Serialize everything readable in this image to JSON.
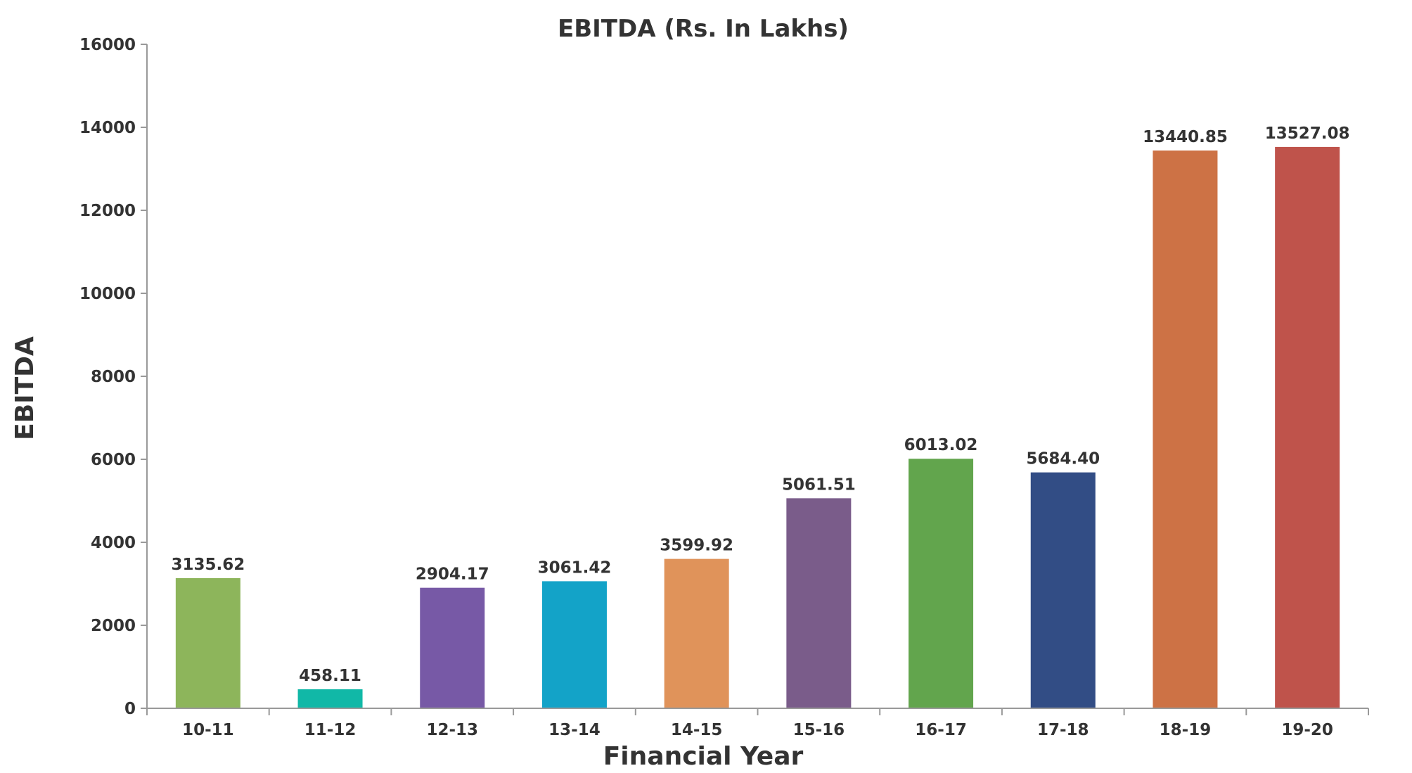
{
  "chart_data": {
    "type": "bar",
    "title": "EBITDA (Rs. In Lakhs)",
    "xlabel": "Financial Year",
    "ylabel": "EBITDA",
    "categories": [
      "10-11",
      "11-12",
      "12-13",
      "13-14",
      "14-15",
      "15-16",
      "16-17",
      "17-18",
      "18-19",
      "19-20"
    ],
    "values": [
      3135.62,
      458.11,
      2904.17,
      3061.42,
      3599.92,
      5061.51,
      6013.02,
      5684.4,
      13440.85,
      13527.08
    ],
    "value_labels": [
      "3135.62",
      "458.11",
      "2904.17",
      "3061.42",
      "3599.92",
      "5061.51",
      "6013.02",
      "5684.40",
      "13440.85",
      "13527.08"
    ],
    "colors": [
      "#8db55b",
      "#11b8a7",
      "#7759a6",
      "#13a3c8",
      "#e0935a",
      "#7a5c8a",
      "#62a54d",
      "#324d85",
      "#cd7245",
      "#bf534b"
    ],
    "ylim": [
      0,
      16000
    ],
    "yticks": [
      0,
      2000,
      4000,
      6000,
      8000,
      10000,
      12000,
      14000,
      16000
    ],
    "grid": false,
    "legend": "none"
  }
}
